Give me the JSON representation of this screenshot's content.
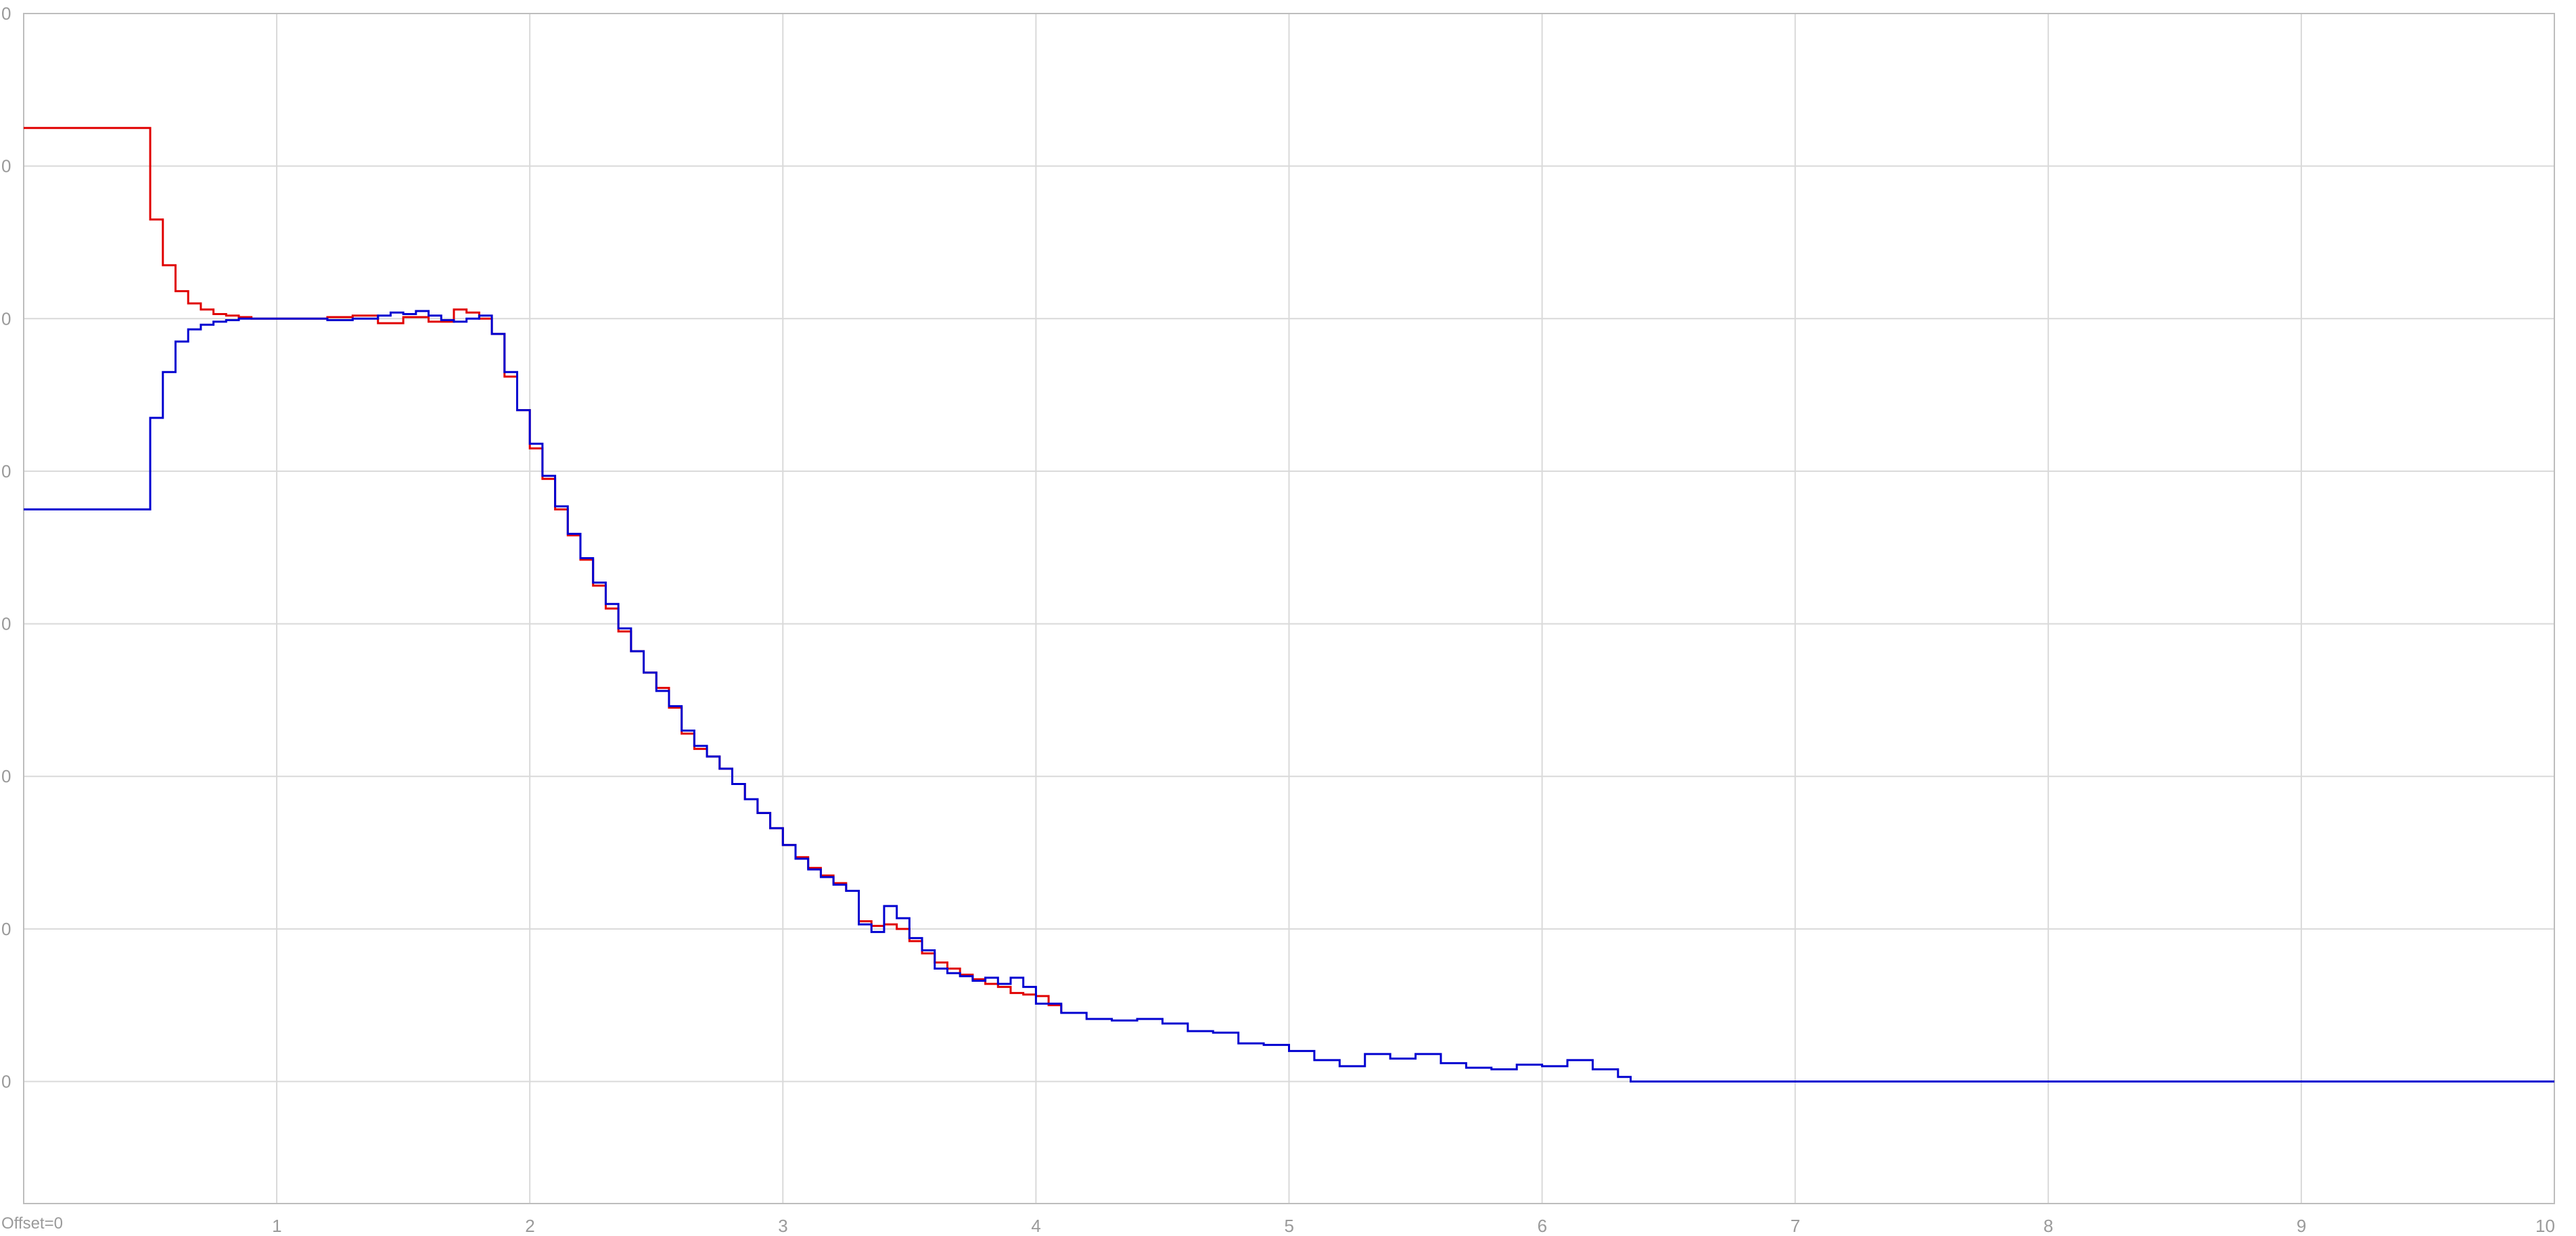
{
  "chart_data": {
    "type": "line",
    "step": true,
    "title": "",
    "xlabel": "",
    "ylabel": "",
    "xlim": [
      0,
      10
    ],
    "ylim": [
      -0.8,
      7.0
    ],
    "x_ticks": [
      1,
      2,
      3,
      4,
      5,
      6,
      7,
      8,
      9,
      10
    ],
    "x_tick_labels": [
      "1",
      "2",
      "3",
      "4",
      "5",
      "6",
      "7",
      "8",
      "9",
      "10"
    ],
    "y_ticks": [
      0,
      1,
      2,
      3,
      4,
      5,
      6,
      7
    ],
    "y_tick_labels": [
      "0",
      "0",
      "0",
      "0",
      "0",
      "0",
      "0",
      "0"
    ],
    "grid": true,
    "offset_label": "Offset=0",
    "series": [
      {
        "name": "red",
        "color": "#e00000",
        "x": [
          0,
          0.5,
          0.55,
          0.6,
          0.65,
          0.7,
          0.75,
          0.8,
          0.85,
          0.9,
          1.0,
          1.1,
          1.2,
          1.3,
          1.4,
          1.5,
          1.6,
          1.7,
          1.75,
          1.8,
          1.85,
          1.9,
          1.95,
          2.0,
          2.05,
          2.1,
          2.15,
          2.2,
          2.25,
          2.3,
          2.35,
          2.4,
          2.45,
          2.5,
          2.55,
          2.6,
          2.65,
          2.7,
          2.75,
          2.8,
          2.85,
          2.9,
          2.95,
          3.0,
          3.05,
          3.1,
          3.15,
          3.2,
          3.25,
          3.3,
          3.35,
          3.4,
          3.45,
          3.5,
          3.55,
          3.6,
          3.65,
          3.7,
          3.75,
          3.8,
          3.85,
          3.9,
          3.95,
          4.0,
          4.05,
          4.1
        ],
        "y": [
          6.25,
          5.65,
          5.35,
          5.18,
          5.1,
          5.06,
          5.03,
          5.02,
          5.01,
          5.0,
          5.0,
          5.0,
          5.01,
          5.02,
          4.97,
          5.01,
          4.98,
          5.06,
          5.04,
          5.0,
          4.9,
          4.62,
          4.4,
          4.15,
          3.95,
          3.75,
          3.58,
          3.42,
          3.25,
          3.1,
          2.95,
          2.82,
          2.68,
          2.58,
          2.45,
          2.28,
          2.18,
          2.13,
          2.05,
          1.95,
          1.85,
          1.76,
          1.66,
          1.55,
          1.47,
          1.4,
          1.35,
          1.3,
          1.25,
          1.05,
          1.02,
          1.03,
          1.0,
          0.92,
          0.84,
          0.78,
          0.74,
          0.7,
          0.67,
          0.64,
          0.62,
          0.58,
          0.57,
          0.56,
          0.5,
          0.45
        ]
      },
      {
        "name": "blue",
        "color": "#0000d0",
        "x": [
          0,
          0.5,
          0.55,
          0.6,
          0.65,
          0.7,
          0.75,
          0.8,
          0.85,
          0.9,
          1.0,
          1.1,
          1.2,
          1.3,
          1.4,
          1.45,
          1.5,
          1.55,
          1.6,
          1.65,
          1.7,
          1.75,
          1.8,
          1.85,
          1.9,
          1.95,
          2.0,
          2.05,
          2.1,
          2.15,
          2.2,
          2.25,
          2.3,
          2.35,
          2.4,
          2.45,
          2.5,
          2.55,
          2.6,
          2.65,
          2.7,
          2.75,
          2.8,
          2.85,
          2.9,
          2.95,
          3.0,
          3.05,
          3.1,
          3.15,
          3.2,
          3.25,
          3.3,
          3.35,
          3.4,
          3.45,
          3.5,
          3.55,
          3.6,
          3.65,
          3.7,
          3.75,
          3.8,
          3.85,
          3.9,
          3.95,
          4.0,
          4.1,
          4.2,
          4.3,
          4.4,
          4.5,
          4.6,
          4.7,
          4.8,
          4.9,
          5.0,
          5.1,
          5.2,
          5.3,
          5.4,
          5.5,
          5.6,
          5.7,
          5.8,
          5.9,
          6.0,
          6.1,
          6.2,
          6.3,
          6.35,
          7.0,
          8.0,
          9.0,
          10.0
        ],
        "y": [
          3.75,
          4.35,
          4.65,
          4.85,
          4.93,
          4.96,
          4.98,
          4.99,
          5.0,
          5.0,
          5.0,
          5.0,
          4.99,
          5.0,
          5.02,
          5.04,
          5.03,
          5.05,
          5.02,
          4.99,
          4.98,
          5.0,
          5.02,
          4.9,
          4.65,
          4.4,
          4.18,
          3.97,
          3.77,
          3.59,
          3.43,
          3.27,
          3.13,
          2.97,
          2.82,
          2.68,
          2.56,
          2.46,
          2.3,
          2.2,
          2.13,
          2.05,
          1.95,
          1.85,
          1.76,
          1.66,
          1.55,
          1.46,
          1.39,
          1.34,
          1.29,
          1.25,
          1.03,
          0.98,
          1.15,
          1.07,
          0.94,
          0.86,
          0.74,
          0.71,
          0.69,
          0.66,
          0.68,
          0.64,
          0.68,
          0.62,
          0.51,
          0.45,
          0.41,
          0.4,
          0.41,
          0.38,
          0.33,
          0.32,
          0.25,
          0.24,
          0.2,
          0.14,
          0.1,
          0.18,
          0.15,
          0.18,
          0.12,
          0.09,
          0.08,
          0.11,
          0.1,
          0.14,
          0.08,
          0.03,
          0.0,
          0.0,
          0.0,
          0.0,
          0.0
        ]
      }
    ]
  }
}
